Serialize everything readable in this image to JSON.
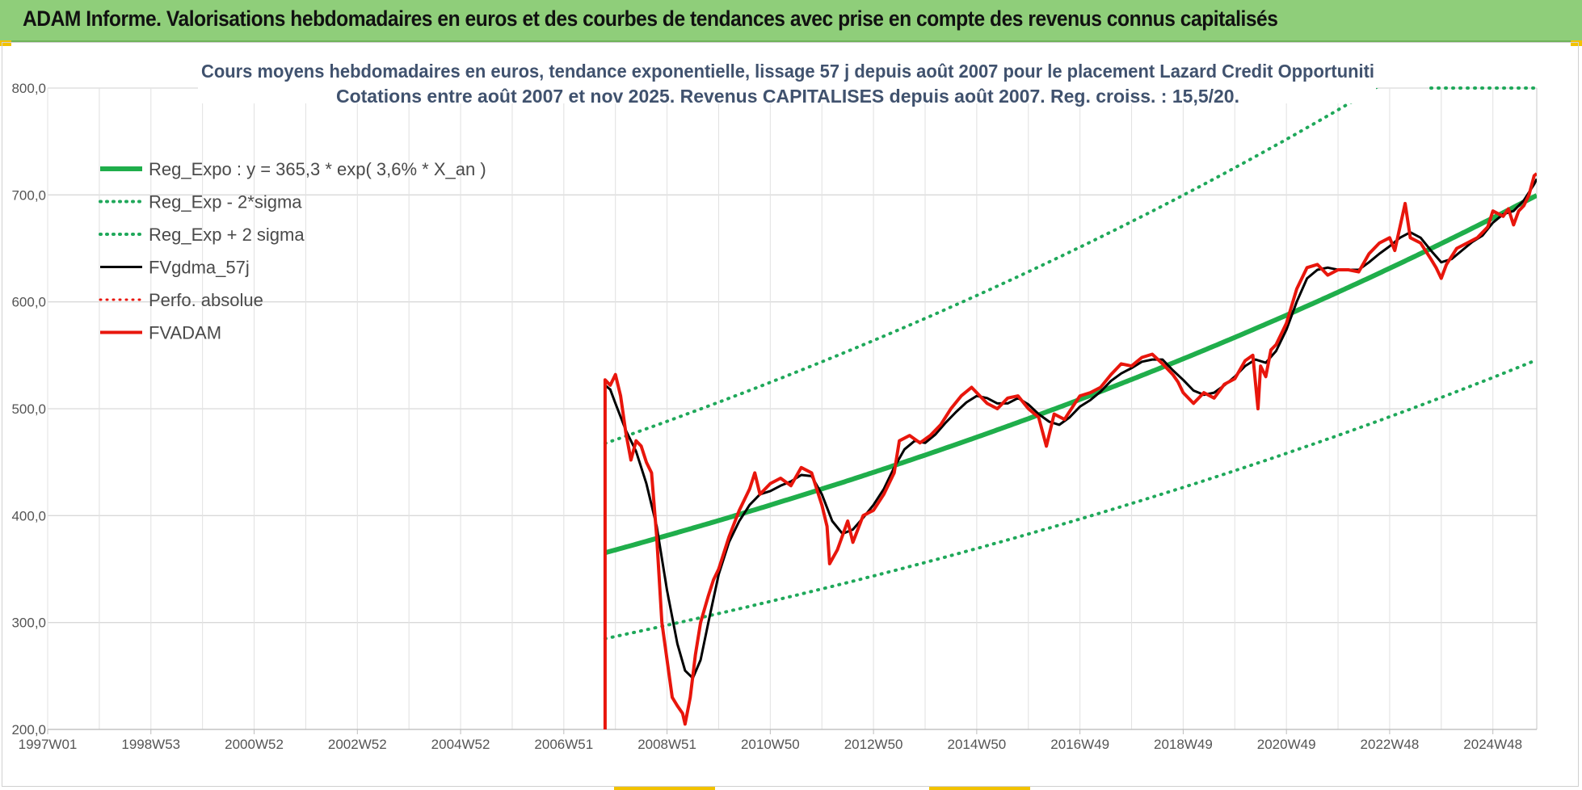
{
  "header": {
    "title": "ADAM Informe. Valorisations hebdomadaires en euros et des courbes de tendances avec prise en compte des revenus connus capitalisés"
  },
  "colors": {
    "header_bg": "#8fce7a",
    "trend_green": "#1fae4b",
    "sigma_green": "#1fa85a",
    "smooth_black": "#000000",
    "perf_red": "#e8160c",
    "title_text": "#40526e"
  },
  "chart_data": {
    "type": "line",
    "title": "Cours moyens hebdomadaires en euros, tendance exponentielle, lissage 57 j depuis août 2007 pour le placement Lazard Credit Opportuniti",
    "subtitle": "Cotations entre août 2007 et nov 2025. Revenus CAPITALISES depuis août 2007. Reg. croiss. : 15,5/20.",
    "xlabel": "",
    "ylabel": "",
    "ylim": [
      200,
      800
    ],
    "xlim": [
      1997.0,
      2025.85
    ],
    "yticks": [
      "200,0",
      "300,0",
      "400,0",
      "500,0",
      "600,0",
      "700,0",
      "800,0"
    ],
    "xticks": [
      {
        "label": "1997W01",
        "x": 1997.0
      },
      {
        "label": "1998W53",
        "x": 1999.0
      },
      {
        "label": "2000W52",
        "x": 2001.0
      },
      {
        "label": "2002W52",
        "x": 2003.0
      },
      {
        "label": "2004W52",
        "x": 2005.0
      },
      {
        "label": "2006W51",
        "x": 2007.0
      },
      {
        "label": "2008W51",
        "x": 2009.0
      },
      {
        "label": "2010W50",
        "x": 2011.0
      },
      {
        "label": "2012W50",
        "x": 2013.0
      },
      {
        "label": "2014W50",
        "x": 2015.0
      },
      {
        "label": "2016W49",
        "x": 2017.0
      },
      {
        "label": "2018W49",
        "x": 2019.0
      },
      {
        "label": "2020W49",
        "x": 2021.0
      },
      {
        "label": "2022W48",
        "x": 2023.0
      },
      {
        "label": "2024W48",
        "x": 2025.0
      }
    ],
    "grid": true,
    "legend_position": "top-left",
    "trend": {
      "a": 365.3,
      "rate": 0.036,
      "x0": 2007.8
    },
    "series": [
      {
        "name": "Reg_Expo : y = 365,3 * exp( 3,6% *  X_an )",
        "style": "solid",
        "color": "#1fae4b",
        "width": 6,
        "points": []
      },
      {
        "name": "Reg_Exp - 2*sigma",
        "style": "dotted",
        "color": "#1fa85a",
        "width": 4,
        "points": []
      },
      {
        "name": "Reg_Exp + 2 sigma",
        "style": "dotted",
        "color": "#1fa85a",
        "width": 4,
        "points": []
      },
      {
        "name": "FVgdma_57j",
        "style": "solid",
        "color": "#000000",
        "width": 3,
        "points": [
          [
            2007.8,
            522
          ],
          [
            2007.9,
            518
          ],
          [
            2008.0,
            505
          ],
          [
            2008.2,
            480
          ],
          [
            2008.4,
            460
          ],
          [
            2008.6,
            430
          ],
          [
            2008.8,
            390
          ],
          [
            2009.0,
            330
          ],
          [
            2009.2,
            280
          ],
          [
            2009.35,
            255
          ],
          [
            2009.5,
            248
          ],
          [
            2009.65,
            265
          ],
          [
            2009.8,
            300
          ],
          [
            2010.0,
            345
          ],
          [
            2010.2,
            375
          ],
          [
            2010.4,
            395
          ],
          [
            2010.6,
            410
          ],
          [
            2010.8,
            420
          ],
          [
            2011.0,
            423
          ],
          [
            2011.2,
            428
          ],
          [
            2011.4,
            432
          ],
          [
            2011.6,
            438
          ],
          [
            2011.8,
            437
          ],
          [
            2012.0,
            420
          ],
          [
            2012.2,
            395
          ],
          [
            2012.4,
            383
          ],
          [
            2012.6,
            387
          ],
          [
            2012.8,
            398
          ],
          [
            2013.0,
            410
          ],
          [
            2013.2,
            425
          ],
          [
            2013.4,
            445
          ],
          [
            2013.6,
            462
          ],
          [
            2013.8,
            470
          ],
          [
            2014.0,
            468
          ],
          [
            2014.2,
            476
          ],
          [
            2014.4,
            487
          ],
          [
            2014.6,
            497
          ],
          [
            2014.8,
            506
          ],
          [
            2015.0,
            512
          ],
          [
            2015.2,
            510
          ],
          [
            2015.4,
            505
          ],
          [
            2015.6,
            505
          ],
          [
            2015.8,
            510
          ],
          [
            2016.0,
            504
          ],
          [
            2016.2,
            495
          ],
          [
            2016.4,
            488
          ],
          [
            2016.6,
            485
          ],
          [
            2016.8,
            492
          ],
          [
            2017.0,
            502
          ],
          [
            2017.2,
            508
          ],
          [
            2017.4,
            516
          ],
          [
            2017.6,
            526
          ],
          [
            2017.8,
            533
          ],
          [
            2018.0,
            538
          ],
          [
            2018.2,
            544
          ],
          [
            2018.4,
            546
          ],
          [
            2018.6,
            546
          ],
          [
            2018.8,
            536
          ],
          [
            2019.0,
            527
          ],
          [
            2019.2,
            517
          ],
          [
            2019.4,
            513
          ],
          [
            2019.6,
            515
          ],
          [
            2019.8,
            522
          ],
          [
            2020.0,
            530
          ],
          [
            2020.2,
            540
          ],
          [
            2020.4,
            546
          ],
          [
            2020.6,
            543
          ],
          [
            2020.8,
            554
          ],
          [
            2021.0,
            574
          ],
          [
            2021.2,
            600
          ],
          [
            2021.4,
            622
          ],
          [
            2021.6,
            630
          ],
          [
            2021.8,
            632
          ],
          [
            2022.0,
            630
          ],
          [
            2022.2,
            630
          ],
          [
            2022.4,
            630
          ],
          [
            2022.6,
            637
          ],
          [
            2022.8,
            645
          ],
          [
            2023.0,
            652
          ],
          [
            2023.2,
            660
          ],
          [
            2023.4,
            665
          ],
          [
            2023.6,
            660
          ],
          [
            2023.8,
            648
          ],
          [
            2024.0,
            637
          ],
          [
            2024.2,
            640
          ],
          [
            2024.4,
            648
          ],
          [
            2024.6,
            656
          ],
          [
            2024.8,
            662
          ],
          [
            2025.0,
            674
          ],
          [
            2025.2,
            682
          ],
          [
            2025.4,
            685
          ],
          [
            2025.6,
            695
          ],
          [
            2025.8,
            710
          ],
          [
            2025.85,
            715
          ]
        ]
      },
      {
        "name": "Perfo. absolue",
        "style": "dotted",
        "color": "#e8160c",
        "width": 3,
        "points": []
      },
      {
        "name": "FVADAM",
        "style": "solid",
        "color": "#e8160c",
        "width": 4,
        "points": [
          [
            2007.8,
            200
          ],
          [
            2007.8,
            527
          ],
          [
            2007.9,
            522
          ],
          [
            2008.0,
            532
          ],
          [
            2008.1,
            512
          ],
          [
            2008.2,
            478
          ],
          [
            2008.3,
            452
          ],
          [
            2008.4,
            470
          ],
          [
            2008.5,
            465
          ],
          [
            2008.6,
            450
          ],
          [
            2008.7,
            440
          ],
          [
            2008.8,
            380
          ],
          [
            2008.9,
            300
          ],
          [
            2009.0,
            265
          ],
          [
            2009.1,
            230
          ],
          [
            2009.2,
            222
          ],
          [
            2009.3,
            215
          ],
          [
            2009.35,
            205
          ],
          [
            2009.45,
            230
          ],
          [
            2009.55,
            270
          ],
          [
            2009.65,
            300
          ],
          [
            2009.8,
            325
          ],
          [
            2009.9,
            340
          ],
          [
            2010.0,
            350
          ],
          [
            2010.2,
            380
          ],
          [
            2010.4,
            405
          ],
          [
            2010.6,
            425
          ],
          [
            2010.7,
            440
          ],
          [
            2010.8,
            420
          ],
          [
            2011.0,
            430
          ],
          [
            2011.2,
            435
          ],
          [
            2011.4,
            428
          ],
          [
            2011.6,
            445
          ],
          [
            2011.8,
            440
          ],
          [
            2011.9,
            425
          ],
          [
            2012.0,
            410
          ],
          [
            2012.1,
            390
          ],
          [
            2012.15,
            355
          ],
          [
            2012.3,
            368
          ],
          [
            2012.5,
            395
          ],
          [
            2012.6,
            375
          ],
          [
            2012.8,
            400
          ],
          [
            2013.0,
            405
          ],
          [
            2013.2,
            420
          ],
          [
            2013.4,
            440
          ],
          [
            2013.5,
            470
          ],
          [
            2013.7,
            475
          ],
          [
            2013.9,
            468
          ],
          [
            2014.1,
            475
          ],
          [
            2014.3,
            485
          ],
          [
            2014.5,
            500
          ],
          [
            2014.7,
            512
          ],
          [
            2014.9,
            520
          ],
          [
            2015.0,
            515
          ],
          [
            2015.2,
            505
          ],
          [
            2015.4,
            500
          ],
          [
            2015.6,
            510
          ],
          [
            2015.8,
            512
          ],
          [
            2016.0,
            500
          ],
          [
            2016.2,
            492
          ],
          [
            2016.35,
            465
          ],
          [
            2016.5,
            495
          ],
          [
            2016.7,
            490
          ],
          [
            2016.9,
            505
          ],
          [
            2017.0,
            512
          ],
          [
            2017.2,
            515
          ],
          [
            2017.4,
            520
          ],
          [
            2017.6,
            532
          ],
          [
            2017.8,
            542
          ],
          [
            2018.0,
            540
          ],
          [
            2018.2,
            548
          ],
          [
            2018.4,
            551
          ],
          [
            2018.6,
            542
          ],
          [
            2018.8,
            532
          ],
          [
            2018.9,
            525
          ],
          [
            2019.0,
            515
          ],
          [
            2019.2,
            505
          ],
          [
            2019.4,
            515
          ],
          [
            2019.6,
            510
          ],
          [
            2019.8,
            523
          ],
          [
            2020.0,
            528
          ],
          [
            2020.2,
            545
          ],
          [
            2020.35,
            550
          ],
          [
            2020.45,
            500
          ],
          [
            2020.5,
            540
          ],
          [
            2020.6,
            530
          ],
          [
            2020.7,
            555
          ],
          [
            2020.8,
            560
          ],
          [
            2021.0,
            580
          ],
          [
            2021.2,
            612
          ],
          [
            2021.4,
            632
          ],
          [
            2021.6,
            635
          ],
          [
            2021.8,
            625
          ],
          [
            2022.0,
            630
          ],
          [
            2022.2,
            630
          ],
          [
            2022.4,
            628
          ],
          [
            2022.6,
            645
          ],
          [
            2022.8,
            655
          ],
          [
            2023.0,
            660
          ],
          [
            2023.1,
            648
          ],
          [
            2023.3,
            692
          ],
          [
            2023.4,
            660
          ],
          [
            2023.6,
            655
          ],
          [
            2023.8,
            640
          ],
          [
            2023.9,
            632
          ],
          [
            2024.0,
            622
          ],
          [
            2024.1,
            635
          ],
          [
            2024.3,
            650
          ],
          [
            2024.5,
            655
          ],
          [
            2024.7,
            660
          ],
          [
            2024.9,
            670
          ],
          [
            2025.0,
            685
          ],
          [
            2025.2,
            680
          ],
          [
            2025.3,
            687
          ],
          [
            2025.4,
            672
          ],
          [
            2025.5,
            685
          ],
          [
            2025.6,
            690
          ],
          [
            2025.7,
            700
          ],
          [
            2025.8,
            718
          ],
          [
            2025.85,
            720
          ]
        ]
      }
    ]
  }
}
